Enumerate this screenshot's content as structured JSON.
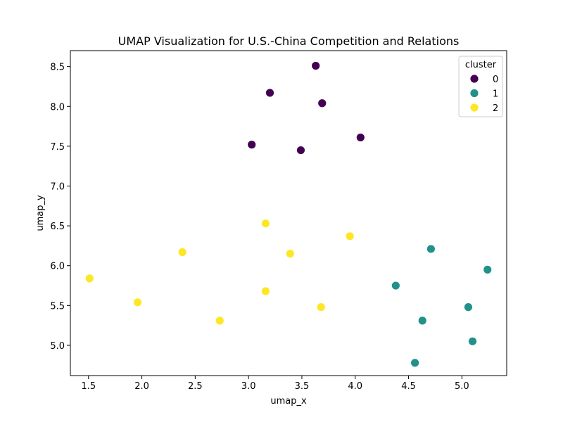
{
  "chart_data": {
    "type": "scatter",
    "title": "UMAP Visualization for U.S.-China Competition and Relations",
    "xlabel": "umap_x",
    "ylabel": "umap_y",
    "xlim": [
      1.33,
      5.42
    ],
    "ylim": [
      4.62,
      8.7
    ],
    "x_ticks": [
      1.5,
      2.0,
      2.5,
      3.0,
      3.5,
      4.0,
      4.5,
      5.0
    ],
    "y_ticks": [
      5.0,
      5.5,
      6.0,
      6.5,
      7.0,
      7.5,
      8.0,
      8.5
    ],
    "x_tick_labels": [
      "1.5",
      "2.0",
      "2.5",
      "3.0",
      "3.5",
      "4.0",
      "4.5",
      "5.0"
    ],
    "y_tick_labels": [
      "5.0",
      "5.5",
      "6.0",
      "6.5",
      "7.0",
      "7.5",
      "8.0",
      "8.5"
    ],
    "grid": false,
    "legend": {
      "title": "cluster",
      "position": "top-right"
    },
    "series": [
      {
        "name": "0",
        "color": "#440154",
        "points": [
          {
            "x": 3.63,
            "y": 8.51
          },
          {
            "x": 3.2,
            "y": 8.17
          },
          {
            "x": 3.69,
            "y": 8.04
          },
          {
            "x": 4.05,
            "y": 7.61
          },
          {
            "x": 3.03,
            "y": 7.52
          },
          {
            "x": 3.49,
            "y": 7.45
          }
        ]
      },
      {
        "name": "1",
        "color": "#21918c",
        "points": [
          {
            "x": 4.71,
            "y": 6.21
          },
          {
            "x": 5.24,
            "y": 5.95
          },
          {
            "x": 4.38,
            "y": 5.75
          },
          {
            "x": 5.06,
            "y": 5.48
          },
          {
            "x": 4.63,
            "y": 5.31
          },
          {
            "x": 5.1,
            "y": 5.05
          },
          {
            "x": 4.56,
            "y": 4.78
          }
        ]
      },
      {
        "name": "2",
        "color": "#fde725",
        "points": [
          {
            "x": 3.16,
            "y": 6.53
          },
          {
            "x": 3.95,
            "y": 6.37
          },
          {
            "x": 2.38,
            "y": 6.17
          },
          {
            "x": 3.39,
            "y": 6.15
          },
          {
            "x": 1.51,
            "y": 5.84
          },
          {
            "x": 3.16,
            "y": 5.68
          },
          {
            "x": 1.96,
            "y": 5.54
          },
          {
            "x": 3.68,
            "y": 5.48
          },
          {
            "x": 2.73,
            "y": 5.31
          }
        ]
      }
    ]
  }
}
